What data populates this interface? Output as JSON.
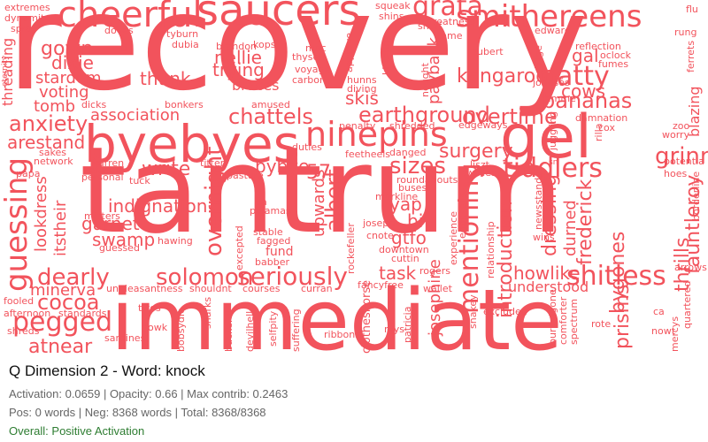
{
  "colors": {
    "word": "#f2535c",
    "title": "#111111",
    "stats": "#666666",
    "overall": "#2e7d32"
  },
  "caption": {
    "title": "Q Dimension 2 - Word: knock",
    "stats_line1": "Activation: 0.0659 | Opacity: 0.66 | Max contrib: 0.2463",
    "stats_line2": "Pos: 0 words | Neg: 8368 words | Total: 8368/8368",
    "overall": "Overall: Positive Activation"
  },
  "words": [
    "recovery",
    "tantrum",
    "immediate",
    "byebyes",
    "saucers",
    "cheerful",
    "smithereens",
    "gel",
    "ninepins",
    "grata",
    "tiddlers",
    "earthground",
    "overtime",
    "chattels",
    "bananas",
    "batty",
    "kangaroo",
    "shitless",
    "solomon",
    "seriously",
    "pegged",
    "dearly",
    "cocoa",
    "atnear",
    "guessing",
    "anxiety",
    "arestand",
    "indignation",
    "garnet",
    "swamp",
    "mentioning",
    "introduction",
    "frederick",
    "fauntleroy",
    "grinnin",
    "thrills",
    "bygones",
    "prisms",
    "dressing",
    "durned",
    "sizes",
    "surgery",
    "write",
    "bybye",
    "57",
    "nellie",
    "trying",
    "braces",
    "thunk",
    "association",
    "tomb",
    "voting",
    "stardom",
    "dixie",
    "gown",
    "skis",
    "payback",
    "overnight",
    "upwards",
    "albert",
    "gtfo",
    "yap",
    "biv",
    "task",
    "howlike",
    "understood",
    "minerva",
    "lookdress",
    "itstheir",
    "cows",
    "gal",
    "josephine",
    "clotheshorse",
    "fund",
    "blazing",
    "threading",
    "flu",
    "extremes",
    "dynamite",
    "spray",
    "squeak",
    "shins",
    "greatness",
    "snuff",
    "tame",
    "edward",
    "rung",
    "doves",
    "tyburn",
    "dubia",
    "brandon",
    "kops",
    "mac",
    "thyself",
    "voyage",
    "carbon",
    "approve",
    "kilkenny",
    "hubert",
    "reflection",
    "oclock",
    "fumes",
    "ferrets",
    "eternity",
    "dicks",
    "bonkers",
    "amused",
    "diving",
    "hunns",
    "jonesés",
    "femme",
    "damnation",
    "cox",
    "zoo",
    "worry",
    "juggling",
    "rilla",
    "penalty",
    "shredded",
    "edgeways",
    "duties",
    "network",
    "warren",
    "refused",
    "personal",
    "tuck",
    "papa",
    "sakes",
    "titter",
    "pasture",
    "feetheels",
    "danged",
    "willies",
    "liszt",
    "roundabouts",
    "hoes",
    "potentia",
    "misters",
    "pajamas",
    "stable",
    "fagged",
    "babber",
    "excepted",
    "hawing",
    "guessed",
    "markline",
    "buses",
    "joseph",
    "cnote",
    "rockefeller",
    "downtown",
    "cuttin",
    "eggshells",
    "experience",
    "newsstands",
    "wins",
    "borderline",
    "arrows",
    "rogers",
    "relationship",
    "wallet",
    "courses",
    "curran",
    "fancyfree",
    "unpleasantness",
    "shouldnt",
    "fooled",
    "afternoon",
    "standards",
    "twos",
    "gowk",
    "sardines",
    "bobsydie",
    "sharks",
    "buckeful",
    "devilhell",
    "selfpity",
    "suffering",
    "ribbons",
    "mys",
    "patricia",
    "snakey",
    "excluded",
    "buriedgone",
    "comforter",
    "spectrum",
    "rote",
    "ca",
    "nowt",
    "mercys",
    "quartered",
    "shreds",
    "til",
    "nought",
    "bilge",
    "pa",
    "sn"
  ]
}
